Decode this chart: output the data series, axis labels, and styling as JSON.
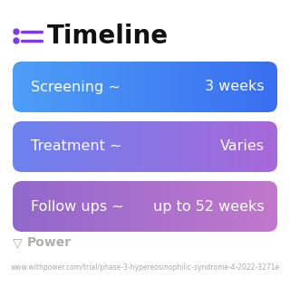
{
  "title": "Timeline",
  "title_fontsize": 20,
  "title_fontweight": "bold",
  "title_color": "#111111",
  "icon_color": "#7C3AED",
  "bg_color": "#ffffff",
  "rows": [
    {
      "label": "Screening ~",
      "value": "3 weeks",
      "grad_left": "#4D9EF8",
      "grad_right": "#3A6EF0"
    },
    {
      "label": "Treatment ~",
      "value": "Varies",
      "grad_left": "#6B82EF",
      "grad_right": "#A868D8"
    },
    {
      "label": "Follow ups ~",
      "value": "up to 52 weeks",
      "grad_left": "#9068CC",
      "grad_right": "#C278CC"
    }
  ],
  "footer_text": "Power",
  "footer_url": "www.withpower.com/trial/phase-3-hypereosinophilic-syndrome-4-2022-3271e",
  "footer_fontsize": 5.5,
  "footer_color": "#aaaaaa",
  "footer_logo_color": "#aaaaaa"
}
